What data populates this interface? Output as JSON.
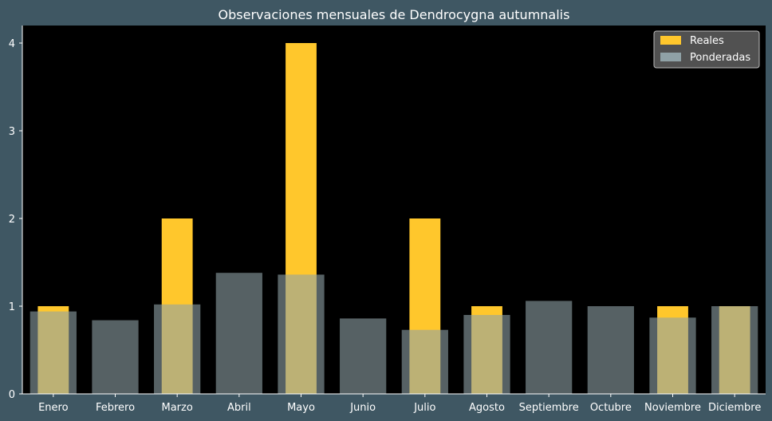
{
  "chart_data": {
    "type": "bar",
    "title": "Observaciones mensuales de Dendrocygna autumnalis",
    "xlabel": "",
    "ylabel": "",
    "categories": [
      "Enero",
      "Febrero",
      "Marzo",
      "Abril",
      "Mayo",
      "Junio",
      "Julio",
      "Agosto",
      "Septiembre",
      "Octubre",
      "Noviembre",
      "Diciembre"
    ],
    "series": [
      {
        "name": "Reales",
        "color": "#ffc72c",
        "values": [
          1,
          0,
          2,
          0,
          4,
          0,
          2,
          1,
          0,
          0,
          1,
          1
        ]
      },
      {
        "name": "Ponderadas",
        "color": "#8fa1a6",
        "values": [
          0.94,
          0.84,
          1.02,
          1.38,
          1.36,
          0.86,
          0.73,
          0.9,
          1.06,
          1.0,
          0.87,
          1.0
        ]
      }
    ],
    "yticks": [
      0,
      1,
      2,
      3,
      4
    ],
    "ylim": [
      0,
      4.2
    ],
    "grid": false,
    "legend_position": "top-right",
    "colors": {
      "figure_background": "#3f5763",
      "plot_background": "#000000",
      "text": "#ffffff"
    }
  }
}
